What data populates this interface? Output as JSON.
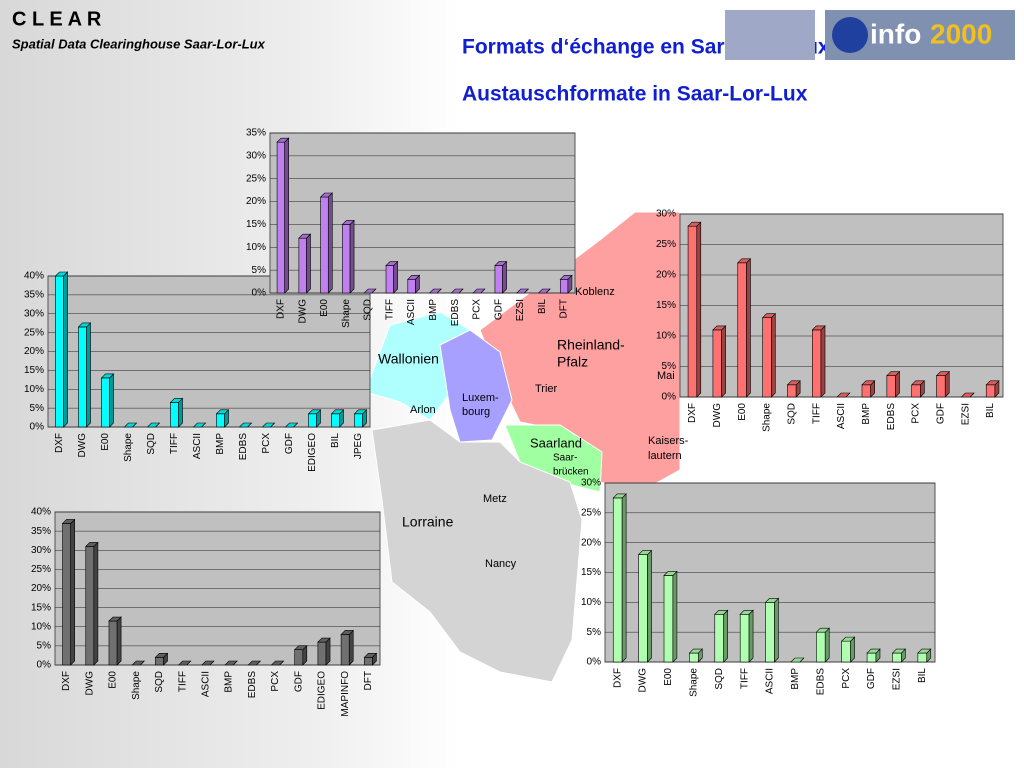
{
  "header": {
    "brand": "C L E A R",
    "subtitle": "Spatial Data Clearinghouse Saar-Lor-Lux",
    "title_fr": "Formats d‘échange en Sarre-Lor-Lux",
    "title_de": "Austauschformate in Saar-Lor-Lux",
    "logo_text": "info",
    "logo_year": "2000"
  },
  "map": {
    "labels": [
      "Wallonien",
      "Luxem-",
      "bourg",
      "Rheinland-",
      "Pfalz",
      "Saarland",
      "Saar-",
      "brücken",
      "Lorraine",
      "Koblenz",
      "Trier",
      "Arlon",
      "Kaisers-",
      "lautern",
      "Metz",
      "Nancy",
      "Mai"
    ]
  },
  "chart_data": [
    {
      "type": "bar",
      "color": "#00ffff",
      "categories": [
        "DXF",
        "DWG",
        "E00",
        "Shape",
        "SQD",
        "TIFF",
        "ASCII",
        "BMP",
        "EDBS",
        "PCX",
        "GDF",
        "EDIGEO",
        "BIL",
        "JPEG"
      ],
      "values": [
        40,
        26.5,
        13,
        0,
        0,
        6.5,
        0,
        3.5,
        0,
        0,
        0,
        3.5,
        3.5,
        3.5
      ],
      "ylim": [
        0,
        40
      ],
      "yticks": [
        {
          "value": 0,
          "label": "0%"
        },
        {
          "value": 5,
          "label": "5%"
        },
        {
          "value": 10,
          "label": "10%"
        },
        {
          "value": 15,
          "label": "15%"
        },
        {
          "value": 20,
          "label": "20%"
        },
        {
          "value": 25,
          "label": "25%"
        },
        {
          "value": 30,
          "label": "30%"
        },
        {
          "value": 35,
          "label": "35%"
        },
        {
          "value": 40,
          "label": "40%"
        }
      ],
      "grid": true
    },
    {
      "type": "bar",
      "color": "#c080f0",
      "categories": [
        "DXF",
        "DWG",
        "E00",
        "Shape",
        "SQD",
        "TIFF",
        "ASCII",
        "BMP",
        "EDBS",
        "PCX",
        "GDF",
        "EZSI",
        "BIL",
        "DFT"
      ],
      "values": [
        33,
        12,
        21,
        15,
        0,
        6,
        3,
        0,
        0,
        0,
        6,
        0,
        0,
        3
      ],
      "ylim": [
        0,
        35
      ],
      "yticks": [
        {
          "value": 0,
          "label": "0%"
        },
        {
          "value": 5,
          "label": "5%"
        },
        {
          "value": 10,
          "label": "10%"
        },
        {
          "value": 15,
          "label": "15%"
        },
        {
          "value": 20,
          "label": "20%"
        },
        {
          "value": 25,
          "label": "25%"
        },
        {
          "value": 30,
          "label": "30%"
        },
        {
          "value": 35,
          "label": "35%"
        }
      ],
      "grid": true
    },
    {
      "type": "bar",
      "color": "#ff7070",
      "categories": [
        "DXF",
        "DWG",
        "E00",
        "Shape",
        "SQD",
        "TIFF",
        "ASCII",
        "BMP",
        "EDBS",
        "PCX",
        "GDF",
        "EZSI",
        "BIL"
      ],
      "values": [
        28,
        11,
        22,
        13,
        2,
        11,
        0,
        2,
        3.5,
        2,
        3.5,
        0,
        2
      ],
      "ylim": [
        0,
        30
      ],
      "yticks": [
        {
          "value": 0,
          "label": "0%"
        },
        {
          "value": 5,
          "label": "5%"
        },
        {
          "value": 10,
          "label": "10%"
        },
        {
          "value": 15,
          "label": "15%"
        },
        {
          "value": 20,
          "label": "20%"
        },
        {
          "value": 25,
          "label": "25%"
        },
        {
          "value": 30,
          "label": "30%"
        }
      ],
      "grid": true
    },
    {
      "type": "bar",
      "color": "#707070",
      "categories": [
        "DXF",
        "DWG",
        "E00",
        "Shape",
        "SQD",
        "TIFF",
        "ASCII",
        "BMP",
        "EDBS",
        "PCX",
        "GDF",
        "EDIGEO",
        "MAPINFO",
        "DFT"
      ],
      "values": [
        37,
        31,
        11.5,
        0,
        2,
        0,
        0,
        0,
        0,
        0,
        4,
        6,
        8,
        2
      ],
      "ylim": [
        0,
        40
      ],
      "yticks": [
        {
          "value": 0,
          "label": "0%"
        },
        {
          "value": 5,
          "label": "5%"
        },
        {
          "value": 10,
          "label": "10%"
        },
        {
          "value": 15,
          "label": "15%"
        },
        {
          "value": 20,
          "label": "20%"
        },
        {
          "value": 25,
          "label": "25%"
        },
        {
          "value": 30,
          "label": "30%"
        },
        {
          "value": 35,
          "label": "35%"
        },
        {
          "value": 40,
          "label": "40%"
        }
      ],
      "grid": true
    },
    {
      "type": "bar",
      "color": "#b0ffb0",
      "categories": [
        "DXF",
        "DWG",
        "E00",
        "Shape",
        "SQD",
        "TIFF",
        "ASCII",
        "BMP",
        "EDBS",
        "PCX",
        "GDF",
        "EZSI",
        "BIL"
      ],
      "values": [
        27.5,
        18,
        14.5,
        1.5,
        8,
        8,
        10,
        0,
        5,
        3.5,
        1.5,
        1.5,
        1.5
      ],
      "ylim": [
        0,
        30
      ],
      "yticks": [
        {
          "value": 0,
          "label": "0%"
        },
        {
          "value": 5,
          "label": "5%"
        },
        {
          "value": 10,
          "label": "10%"
        },
        {
          "value": 15,
          "label": "15%"
        },
        {
          "value": 20,
          "label": "20%"
        },
        {
          "value": 25,
          "label": "25%"
        },
        {
          "value": 30,
          "label": "30%"
        }
      ],
      "grid": true
    }
  ]
}
